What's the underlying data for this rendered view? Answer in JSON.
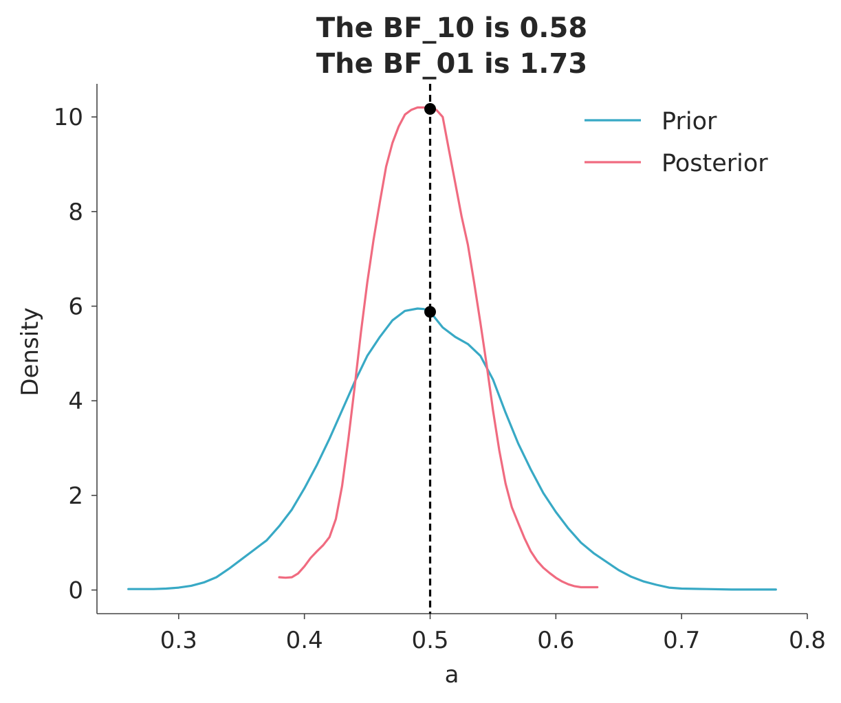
{
  "chart_data": {
    "type": "line",
    "title": [
      "The BF_10 is 0.58",
      "The BF_01 is 1.73"
    ],
    "xlabel": "a",
    "ylabel": "Density",
    "xlim": [
      0.235,
      0.8
    ],
    "ylim": [
      -0.5,
      10.7
    ],
    "xticks": [
      0.3,
      0.4,
      0.5,
      0.6,
      0.7,
      0.8
    ],
    "xtick_labels": [
      "0.3",
      "0.4",
      "0.5",
      "0.6",
      "0.7",
      "0.8"
    ],
    "yticks": [
      0,
      2,
      4,
      6,
      8,
      10
    ],
    "ytick_labels": [
      "0",
      "2",
      "4",
      "6",
      "8",
      "10"
    ],
    "grid": false,
    "legend_position": "top-right",
    "reference_line": {
      "x": 0.5,
      "style": "dashed",
      "color": "#000000"
    },
    "markers": [
      {
        "x": 0.5,
        "y": 10.17,
        "color": "#000000"
      },
      {
        "x": 0.5,
        "y": 5.88,
        "color": "#000000"
      }
    ],
    "series": [
      {
        "name": "Prior",
        "color": "#38a9c5",
        "x": [
          0.26,
          0.27,
          0.28,
          0.29,
          0.3,
          0.31,
          0.32,
          0.33,
          0.34,
          0.35,
          0.36,
          0.37,
          0.38,
          0.39,
          0.4,
          0.41,
          0.42,
          0.43,
          0.44,
          0.45,
          0.46,
          0.47,
          0.48,
          0.49,
          0.495,
          0.5,
          0.51,
          0.52,
          0.53,
          0.54,
          0.55,
          0.56,
          0.57,
          0.58,
          0.59,
          0.6,
          0.61,
          0.62,
          0.63,
          0.64,
          0.65,
          0.66,
          0.67,
          0.68,
          0.69,
          0.7,
          0.72,
          0.74,
          0.76,
          0.775
        ],
        "y": [
          0.02,
          0.02,
          0.02,
          0.03,
          0.05,
          0.09,
          0.16,
          0.27,
          0.45,
          0.65,
          0.85,
          1.05,
          1.35,
          1.7,
          2.15,
          2.65,
          3.2,
          3.8,
          4.4,
          4.95,
          5.35,
          5.7,
          5.9,
          5.95,
          5.94,
          5.88,
          5.55,
          5.35,
          5.2,
          4.95,
          4.45,
          3.75,
          3.1,
          2.55,
          2.05,
          1.65,
          1.3,
          1.0,
          0.78,
          0.6,
          0.42,
          0.28,
          0.18,
          0.11,
          0.05,
          0.03,
          0.02,
          0.01,
          0.01,
          0.01
        ]
      },
      {
        "name": "Posterior",
        "color": "#f06b80",
        "x": [
          0.38,
          0.385,
          0.39,
          0.395,
          0.4,
          0.405,
          0.41,
          0.415,
          0.42,
          0.425,
          0.43,
          0.435,
          0.44,
          0.445,
          0.45,
          0.455,
          0.46,
          0.465,
          0.47,
          0.475,
          0.48,
          0.485,
          0.49,
          0.495,
          0.5,
          0.505,
          0.51,
          0.515,
          0.52,
          0.525,
          0.53,
          0.535,
          0.54,
          0.545,
          0.55,
          0.555,
          0.56,
          0.565,
          0.57,
          0.575,
          0.58,
          0.585,
          0.59,
          0.595,
          0.6,
          0.605,
          0.61,
          0.615,
          0.62,
          0.625,
          0.633
        ],
        "y": [
          0.27,
          0.26,
          0.27,
          0.35,
          0.5,
          0.68,
          0.82,
          0.95,
          1.12,
          1.5,
          2.2,
          3.2,
          4.3,
          5.45,
          6.5,
          7.4,
          8.2,
          8.95,
          9.45,
          9.8,
          10.05,
          10.15,
          10.2,
          10.2,
          10.17,
          10.15,
          10.0,
          9.3,
          8.6,
          7.9,
          7.3,
          6.5,
          5.65,
          4.75,
          3.8,
          2.95,
          2.25,
          1.75,
          1.42,
          1.1,
          0.82,
          0.62,
          0.47,
          0.36,
          0.26,
          0.18,
          0.12,
          0.08,
          0.06,
          0.06,
          0.06
        ]
      }
    ]
  }
}
